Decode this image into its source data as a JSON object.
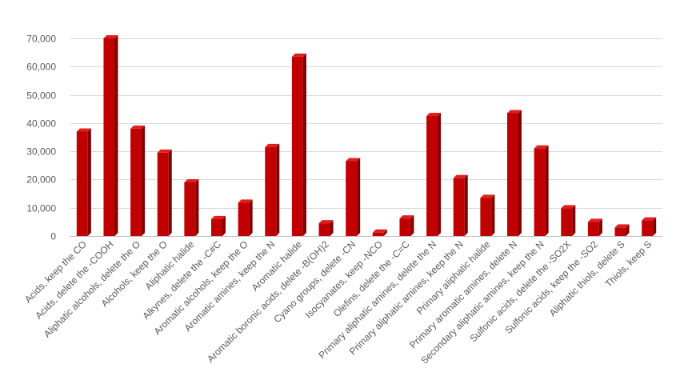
{
  "colors": {
    "bar_front": "#c00000",
    "bar_side": "#7f0000",
    "bar_top": "#e02020",
    "grid": "#d9d9d9",
    "text": "#595959"
  },
  "chart_data": {
    "type": "bar",
    "title": "",
    "xlabel": "",
    "ylabel": "",
    "ylim": [
      0,
      70000
    ],
    "yticks": [
      0,
      10000,
      20000,
      30000,
      40000,
      50000,
      60000,
      70000
    ],
    "ytick_labels": [
      "0",
      "10,000",
      "20,000",
      "30,000",
      "40,000",
      "50,000",
      "60,000",
      "70,000"
    ],
    "grid": true,
    "legend": "none",
    "categories": [
      "Acids, keep the CO",
      "Acids, delete the -COOH",
      "Aliphatic alcohols, delete the O",
      "Alcohols, keep the O",
      "Aliphatic halide",
      "Alkynes, delete the -C#C",
      "Aromatic alcohols, keep the O",
      "Aromatic amines, keep the N",
      "Aromatic halide",
      "Aromatic boronic acids, delete -B(OH)2",
      "Cyano groups, delete -CN",
      "Isocyanates, keep -NCO",
      "Olefins, delete the -C=C",
      "Primary aliphatic amines, delete the N",
      "Primary aliphatic amines, keep the N",
      "Primary aliphatic halide",
      "Primary aromatic amines, delete N",
      "Secondary aliphatic amines, keep the N",
      "Sulfonic acids, delete the -SO2X",
      "Sulfonic acids, keep the -SO2",
      "Aliphatic thiols, delete S",
      "Thiols, keep S"
    ],
    "values": [
      37000,
      70000,
      38000,
      29500,
      19000,
      6000,
      11800,
      31500,
      63500,
      4500,
      26500,
      1200,
      6200,
      42500,
      20500,
      13500,
      43500,
      31000,
      9800,
      5000,
      3000,
      5500
    ]
  }
}
